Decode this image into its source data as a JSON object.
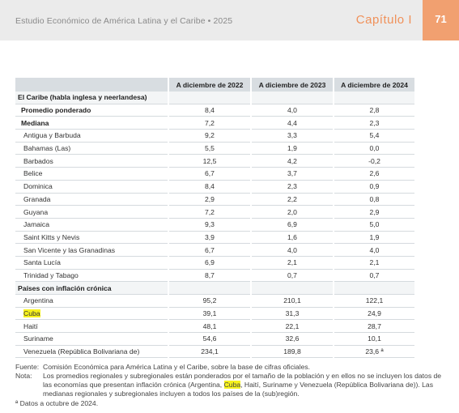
{
  "header": {
    "doc_title": "Estudio Económico de América Latina y el Caribe • 2025",
    "chapter": "Capítulo I",
    "page": "71"
  },
  "table": {
    "columns": [
      "",
      "A diciembre de 2022",
      "A diciembre de 2023",
      "A diciembre de 2024"
    ],
    "rows": [
      {
        "type": "sect",
        "label": "El Caribe (habla inglesa y neerlandesa)",
        "v": [
          "",
          "",
          ""
        ]
      },
      {
        "type": "sum",
        "label": "Promedio ponderado",
        "v": [
          "8,4",
          "4,0",
          "2,8"
        ]
      },
      {
        "type": "sum",
        "label": "Mediana",
        "v": [
          "7,2",
          "4,4",
          "2,3"
        ]
      },
      {
        "type": "item",
        "label": "Antigua y Barbuda",
        "v": [
          "9,2",
          "3,3",
          "5,4"
        ]
      },
      {
        "type": "item",
        "label": "Bahamas (Las)",
        "v": [
          "5,5",
          "1,9",
          "0,0"
        ]
      },
      {
        "type": "item",
        "label": "Barbados",
        "v": [
          "12,5",
          "4,2",
          "-0,2"
        ]
      },
      {
        "type": "item",
        "label": "Belice",
        "v": [
          "6,7",
          "3,7",
          "2,6"
        ]
      },
      {
        "type": "item",
        "label": "Dominica",
        "v": [
          "8,4",
          "2,3",
          "0,9"
        ]
      },
      {
        "type": "item",
        "label": "Granada",
        "v": [
          "2,9",
          "2,2",
          "0,8"
        ]
      },
      {
        "type": "item",
        "label": "Guyana",
        "v": [
          "7,2",
          "2,0",
          "2,9"
        ]
      },
      {
        "type": "item",
        "label": "Jamaica",
        "v": [
          "9,3",
          "6,9",
          "5,0"
        ]
      },
      {
        "type": "item",
        "label": "Saint Kitts y Nevis",
        "v": [
          "3,9",
          "1,6",
          "1,9"
        ]
      },
      {
        "type": "item",
        "label": "San Vicente y las Granadinas",
        "v": [
          "6,7",
          "4,0",
          "4,0"
        ]
      },
      {
        "type": "item",
        "label": "Santa Lucía",
        "v": [
          "6,9",
          "2,1",
          "2,1"
        ]
      },
      {
        "type": "item",
        "label": "Trinidad y Tabago",
        "v": [
          "8,7",
          "0,7",
          "0,7"
        ]
      },
      {
        "type": "sect",
        "label": "Países con inflación crónica",
        "v": [
          "",
          "",
          ""
        ]
      },
      {
        "type": "item",
        "label": "Argentina",
        "v": [
          "95,2",
          "210,1",
          "122,1"
        ]
      },
      {
        "type": "item",
        "label": "Cuba",
        "highlight": true,
        "v": [
          "39,1",
          "31,3",
          "24,9"
        ]
      },
      {
        "type": "item",
        "label": "Haití",
        "v": [
          "48,1",
          "22,1",
          "28,7"
        ]
      },
      {
        "type": "item",
        "label": "Suriname",
        "v": [
          "54,6",
          "32,6",
          "10,1"
        ]
      },
      {
        "type": "item",
        "label": "Venezuela (República Bolivariana de)",
        "v": [
          "234,1",
          "189,8",
          "23,6 ª"
        ]
      }
    ]
  },
  "notes": {
    "source_key": "Fuente:",
    "source_text": "Comisión Económica para América Latina y el Caribe, sobre la base de cifras oficiales.",
    "note_key": "Nota:",
    "note_before": "Los promedios regionales y subregionales están ponderados por el tamaño de la población y en ellos no se incluyen los datos de las economías que presentan inflación crónica (Argentina, ",
    "note_highlight": "Cuba",
    "note_after": ", Haití, Suriname y Venezuela (República Bolivariana de)). Las medianas regionales y subregionales incluyen a todos los países de la (sub)región.",
    "footnote": "ª  Datos a octubre de 2024.",
    "highlight_color": "#f7f21c"
  }
}
